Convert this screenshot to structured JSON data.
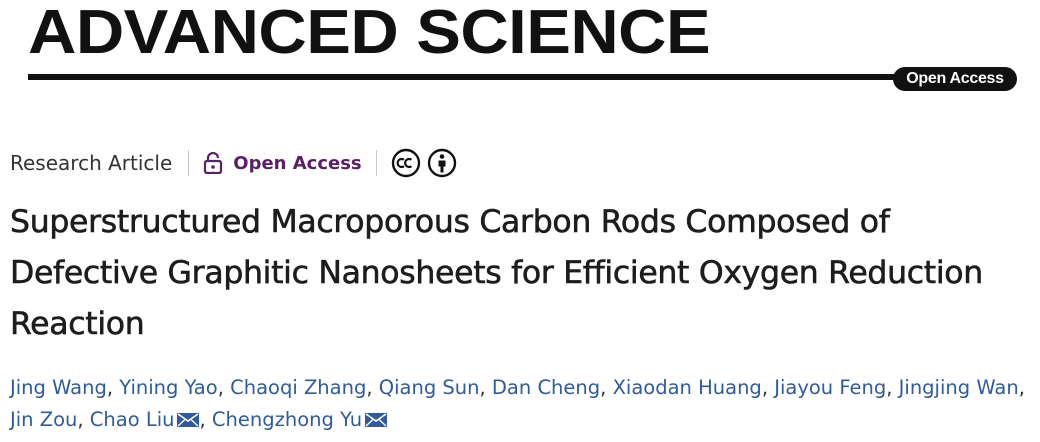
{
  "journal": {
    "name": "ADVANCED SCIENCE",
    "badge": "Open Access"
  },
  "article": {
    "type": "Research Article",
    "access": "Open Access",
    "title": "Superstructured Macroporous Carbon Rods Composed of Defective Graphitic Nanosheets for Efficient Oxygen Reduction Reaction"
  },
  "icons": {
    "lock": "lock-icon",
    "cc": "creative-commons-icon",
    "by": "attribution-icon",
    "mail": "envelope-icon"
  },
  "authors": [
    {
      "name": "Jing Wang"
    },
    {
      "name": "Yining Yao"
    },
    {
      "name": "Chaoqi Zhang"
    },
    {
      "name": "Qiang Sun"
    },
    {
      "name": "Dan Cheng"
    },
    {
      "name": "Xiaodan Huang"
    },
    {
      "name": "Jiayou Feng"
    },
    {
      "name": "Jingjing Wan"
    },
    {
      "name": "Jin Zou"
    },
    {
      "name": "Chao Liu"
    },
    {
      "name": "Chengzhong Yu"
    }
  ],
  "colors": {
    "access_purple": "#5b1f68",
    "author_blue": "#2f5b9c",
    "text_dark": "#1c1d1e"
  }
}
